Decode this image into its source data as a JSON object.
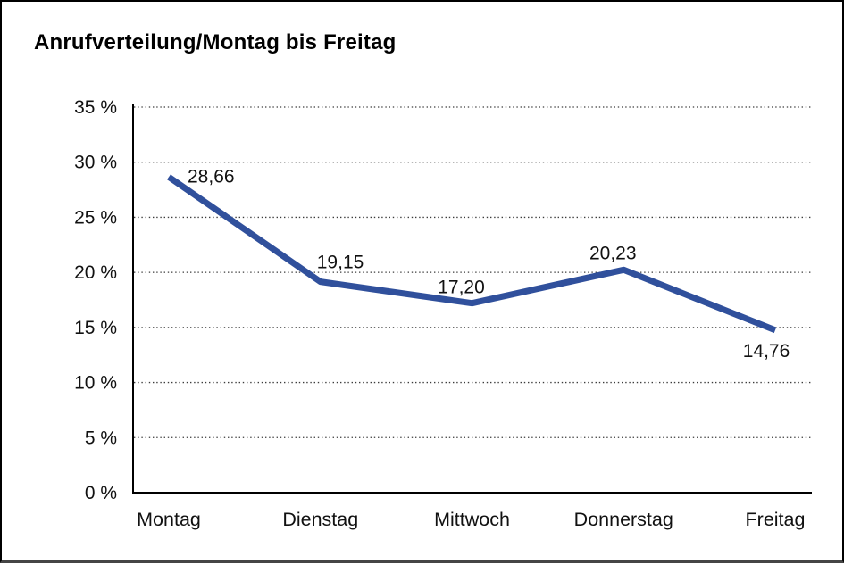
{
  "page": {
    "title": "Anrufverteilung/Montag bis Freitag"
  },
  "colors": {
    "background": "#FFFFFF",
    "frame": "#000000",
    "frame_bottom": "#454545",
    "line": "#30509C",
    "grid": "#3C3C3C",
    "axis": "#000000",
    "text": "#111111"
  },
  "chart_data": {
    "type": "line",
    "title": "Anrufverteilung/Montag bis Freitag",
    "categories": [
      "Montag",
      "Dienstag",
      "Mittwoch",
      "Donnerstag",
      "Freitag"
    ],
    "series": [
      {
        "name": "Anrufverteilung",
        "values": [
          28.66,
          19.15,
          17.2,
          20.23,
          14.76
        ]
      }
    ],
    "point_labels": [
      "28,66",
      "19,15",
      "17,20",
      "20,23",
      "14,76"
    ],
    "y_ticks": [
      "35 %",
      "30 %",
      "25 %",
      "20 %",
      "15 %",
      "10 %",
      "5 %",
      "0 %"
    ],
    "y_tick_values": [
      35,
      30,
      25,
      20,
      15,
      10,
      5,
      0
    ],
    "ylim": [
      0,
      35
    ],
    "xlabel": "",
    "ylabel": "",
    "grid": "horizontal-dotted",
    "legend": "none"
  }
}
